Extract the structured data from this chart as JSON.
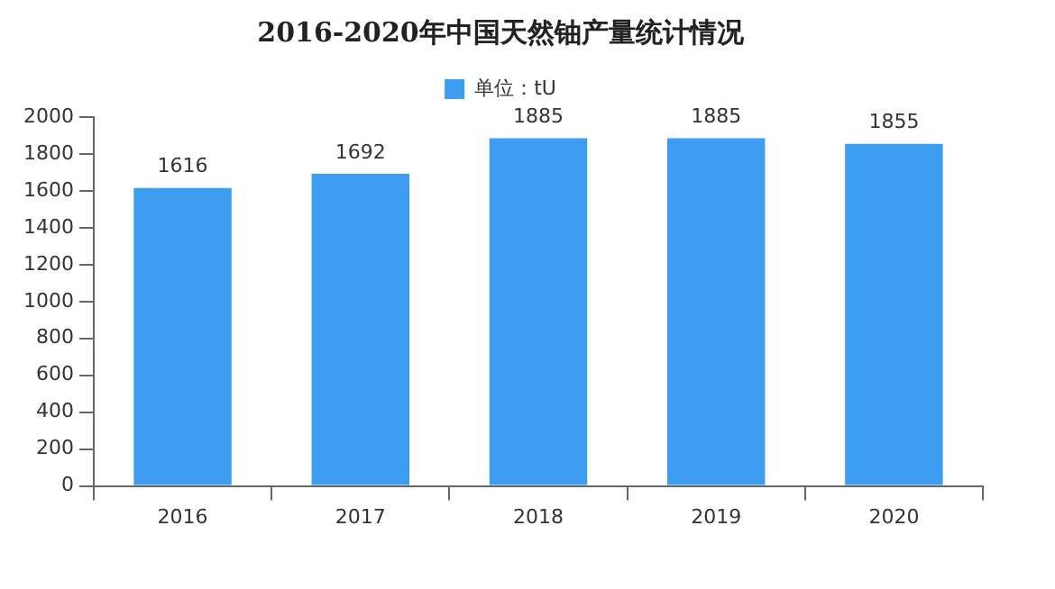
{
  "chart_data": {
    "type": "bar",
    "title": "2016-2020年中国天然铀产量统计情况",
    "categories": [
      "2016",
      "2017",
      "2018",
      "2019",
      "2020"
    ],
    "series": [
      {
        "name": "单位：tU",
        "color": "#3d9df0",
        "values": [
          1616,
          1692,
          1885,
          1885,
          1855
        ]
      }
    ],
    "ylim": [
      0,
      2000
    ],
    "yticks": [
      0,
      200,
      400,
      600,
      800,
      1000,
      1200,
      1400,
      1600,
      1800,
      2000
    ],
    "grid": false,
    "legend": "top",
    "data_labels": true
  }
}
